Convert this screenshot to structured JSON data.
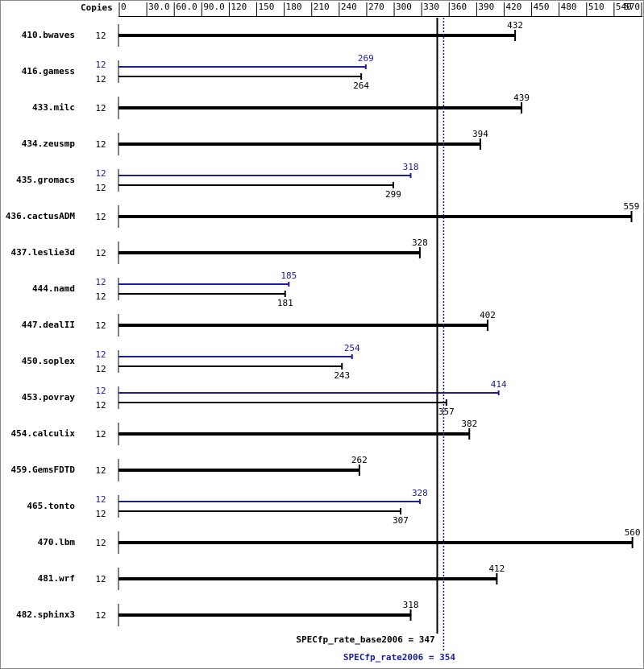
{
  "chart_data": {
    "type": "hbar",
    "copies_header": "Copies",
    "xlim": [
      0,
      570
    ],
    "xticks": [
      0,
      {
        "value": 30,
        "label": "30.0"
      },
      {
        "value": 60,
        "label": "60.0"
      },
      {
        "value": 90,
        "label": "90.0"
      },
      120,
      150,
      180,
      210,
      240,
      270,
      300,
      330,
      360,
      390,
      420,
      450,
      480,
      510,
      540,
      570
    ],
    "base_color": "#000000",
    "peak_color": "#1c1c9c",
    "rows": [
      {
        "name": "410.bwaves",
        "base_copies": 12,
        "base": 432
      },
      {
        "name": "416.gamess",
        "peak_copies": 12,
        "peak": 269,
        "base_copies": 12,
        "base": 264
      },
      {
        "name": "433.milc",
        "base_copies": 12,
        "base": 439
      },
      {
        "name": "434.zeusmp",
        "base_copies": 12,
        "base": 394
      },
      {
        "name": "435.gromacs",
        "peak_copies": 12,
        "peak": 318,
        "base_copies": 12,
        "base": 299
      },
      {
        "name": "436.cactusADM",
        "base_copies": 12,
        "base": 559
      },
      {
        "name": "437.leslie3d",
        "base_copies": 12,
        "base": 328
      },
      {
        "name": "444.namd",
        "peak_copies": 12,
        "peak": 185,
        "base_copies": 12,
        "base": 181
      },
      {
        "name": "447.dealII",
        "base_copies": 12,
        "base": 402
      },
      {
        "name": "450.soplex",
        "peak_copies": 12,
        "peak": 254,
        "base_copies": 12,
        "base": 243
      },
      {
        "name": "453.povray",
        "peak_copies": 12,
        "peak": 414,
        "base_copies": 12,
        "base": 357
      },
      {
        "name": "454.calculix",
        "base_copies": 12,
        "base": 382
      },
      {
        "name": "459.GemsFDTD",
        "base_copies": 12,
        "base": 262
      },
      {
        "name": "465.tonto",
        "peak_copies": 12,
        "peak": 328,
        "base_copies": 12,
        "base": 307
      },
      {
        "name": "470.lbm",
        "base_copies": 12,
        "base": 560
      },
      {
        "name": "481.wrf",
        "base_copies": 12,
        "base": 412
      },
      {
        "name": "482.sphinx3",
        "base_copies": 12,
        "base": 318
      }
    ],
    "reference_lines": [
      {
        "label": "SPECfp_rate_base2006 = 347",
        "value": 347,
        "color": "#000000",
        "style": "solid"
      },
      {
        "label": "SPECfp_rate2006 = 354",
        "value": 354,
        "color": "#1c1c9c",
        "style": "dotted"
      }
    ]
  }
}
